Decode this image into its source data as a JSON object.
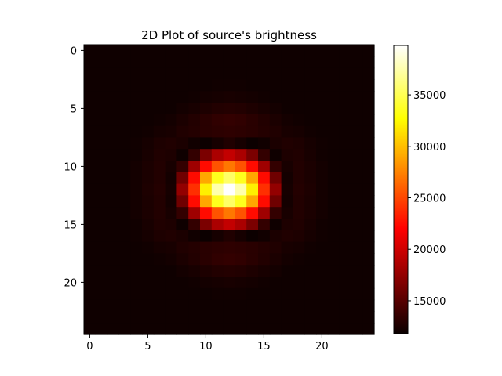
{
  "chart_data": {
    "type": "heatmap",
    "title": "2D Plot of source's brightness",
    "xlabel": "",
    "ylabel": "",
    "grid": false,
    "colormap": "hot",
    "rows": 25,
    "cols": 25,
    "x_ticks": [
      0,
      5,
      10,
      15,
      20
    ],
    "x_tick_labels": [
      "0",
      "5",
      "10",
      "15",
      "20"
    ],
    "y_ticks": [
      0,
      5,
      10,
      15,
      20
    ],
    "y_tick_labels": [
      "0",
      "5",
      "10",
      "15",
      "20"
    ],
    "colorbar": {
      "min": 11800,
      "max": 39800,
      "ticks": [
        15000,
        20000,
        25000,
        30000,
        35000
      ],
      "tick_labels": [
        "15000",
        "20000",
        "25000",
        "30000",
        "35000"
      ]
    },
    "values": [
      [
        12000,
        12000,
        12000,
        12000,
        12000,
        12000,
        12000,
        12000,
        12000,
        12000,
        12000,
        12000,
        12000,
        12000,
        12000,
        12000,
        12000,
        12000,
        12000,
        12000,
        12000,
        12000,
        12000,
        12000,
        12000
      ],
      [
        12000,
        12000,
        12000,
        12000,
        12000,
        12000,
        12000,
        12000,
        12000,
        12000,
        12000,
        12000,
        12000,
        12000,
        12000,
        12000,
        12000,
        12000,
        12000,
        12000,
        12000,
        12000,
        12000,
        12000,
        12000
      ],
      [
        12000,
        12000,
        12000,
        12000,
        12000,
        12000,
        12000,
        12000,
        12000,
        12000,
        12000,
        12000,
        12000,
        12000,
        12000,
        12000,
        12000,
        12000,
        12000,
        12000,
        12000,
        12000,
        12000,
        12000,
        12000
      ],
      [
        12000,
        12000,
        12000,
        12000,
        12000,
        12000,
        12000,
        12000,
        12000,
        12000,
        12000,
        12100,
        12100,
        12100,
        12000,
        12000,
        12000,
        12000,
        12000,
        12000,
        12000,
        12000,
        12000,
        12000,
        12000
      ],
      [
        12000,
        12000,
        12000,
        12000,
        12000,
        12000,
        12000,
        12000,
        12000,
        12100,
        12200,
        12300,
        12400,
        12300,
        12200,
        12100,
        12000,
        12000,
        12000,
        12000,
        12000,
        12000,
        12000,
        12000,
        12000
      ],
      [
        12000,
        12000,
        12000,
        12000,
        12000,
        12000,
        12000,
        12000,
        12200,
        12400,
        12600,
        12800,
        12900,
        12800,
        12600,
        12400,
        12200,
        12000,
        12000,
        12000,
        12000,
        12000,
        12000,
        12000,
        12000
      ],
      [
        12000,
        12000,
        12000,
        12000,
        12000,
        12000,
        12100,
        12200,
        12500,
        12800,
        13100,
        13400,
        13500,
        13400,
        13100,
        12800,
        12500,
        12200,
        12100,
        12000,
        12000,
        12000,
        12000,
        12000,
        12000
      ],
      [
        12000,
        12000,
        12000,
        12000,
        12000,
        12100,
        12300,
        12400,
        12700,
        12900,
        13100,
        13200,
        13300,
        13200,
        13100,
        12900,
        12700,
        12400,
        12300,
        12100,
        12000,
        12000,
        12000,
        12000,
        12000
      ],
      [
        12000,
        12000,
        12000,
        12000,
        12100,
        12300,
        12600,
        12700,
        12500,
        12100,
        11900,
        12300,
        12700,
        12300,
        11900,
        12100,
        12500,
        12700,
        12600,
        12300,
        12100,
        12000,
        12000,
        12000,
        12000
      ],
      [
        12000,
        12000,
        12000,
        12000,
        12100,
        12400,
        12700,
        12600,
        12000,
        13500,
        16500,
        18500,
        19500,
        18500,
        16500,
        13500,
        12000,
        12600,
        12700,
        12400,
        12100,
        12000,
        12000,
        12000,
        12000
      ],
      [
        12000,
        12000,
        12000,
        12000,
        12200,
        12500,
        12800,
        12400,
        13500,
        18000,
        22500,
        25500,
        27000,
        25500,
        22500,
        18000,
        13500,
        12400,
        12800,
        12500,
        12200,
        12000,
        12000,
        12000,
        12000
      ],
      [
        12000,
        12000,
        12000,
        12000,
        12200,
        12500,
        12800,
        12200,
        16000,
        22500,
        29000,
        33500,
        35500,
        33500,
        29000,
        22500,
        16000,
        12200,
        12800,
        12500,
        12200,
        12000,
        12000,
        12000,
        12000
      ],
      [
        12000,
        12000,
        12000,
        12000,
        12200,
        12600,
        12900,
        12300,
        17500,
        24000,
        32000,
        37500,
        39800,
        37500,
        32000,
        24000,
        17500,
        12300,
        12900,
        12600,
        12200,
        12000,
        12000,
        12000,
        12000
      ],
      [
        12000,
        12000,
        12000,
        12000,
        12200,
        12500,
        12800,
        12200,
        16000,
        22500,
        29000,
        33500,
        35500,
        33500,
        29000,
        22500,
        16000,
        12200,
        12800,
        12500,
        12200,
        12000,
        12000,
        12000,
        12000
      ],
      [
        12000,
        12000,
        12000,
        12000,
        12200,
        12500,
        12800,
        12400,
        13500,
        18000,
        22500,
        25500,
        27000,
        25500,
        22500,
        18000,
        13500,
        12400,
        12800,
        12500,
        12200,
        12000,
        12000,
        12000,
        12000
      ],
      [
        12000,
        12000,
        12000,
        12000,
        12100,
        12400,
        12700,
        12600,
        12000,
        13500,
        16500,
        18500,
        19500,
        18500,
        16500,
        13500,
        12000,
        12600,
        12700,
        12400,
        12100,
        12000,
        12000,
        12000,
        12000
      ],
      [
        12000,
        12000,
        12000,
        12000,
        12100,
        12300,
        12600,
        12700,
        12500,
        12100,
        11900,
        12300,
        12700,
        12300,
        11900,
        12100,
        12500,
        12700,
        12600,
        12300,
        12100,
        12000,
        12000,
        12000,
        12000
      ],
      [
        12000,
        12000,
        12000,
        12000,
        12000,
        12100,
        12300,
        12400,
        12700,
        12900,
        13100,
        13200,
        13300,
        13200,
        13100,
        12900,
        12700,
        12400,
        12300,
        12100,
        12000,
        12000,
        12000,
        12000,
        12000
      ],
      [
        12000,
        12000,
        12000,
        12000,
        12000,
        12000,
        12100,
        12200,
        12500,
        12800,
        13100,
        13400,
        13500,
        13400,
        13100,
        12800,
        12500,
        12200,
        12100,
        12000,
        12000,
        12000,
        12000,
        12000,
        12000
      ],
      [
        12000,
        12000,
        12000,
        12000,
        12000,
        12000,
        12000,
        12000,
        12200,
        12400,
        12600,
        12800,
        12900,
        12800,
        12600,
        12400,
        12200,
        12000,
        12000,
        12000,
        12000,
        12000,
        12000,
        12000,
        12000
      ],
      [
        12000,
        12000,
        12000,
        12000,
        12000,
        12000,
        12000,
        12000,
        12000,
        12100,
        12200,
        12300,
        12400,
        12300,
        12200,
        12100,
        12000,
        12000,
        12000,
        12000,
        12000,
        12000,
        12000,
        12000,
        12000
      ],
      [
        12000,
        12000,
        12000,
        12000,
        12000,
        12000,
        12000,
        12000,
        12000,
        12000,
        12000,
        12100,
        12100,
        12100,
        12000,
        12000,
        12000,
        12000,
        12000,
        12000,
        12000,
        12000,
        12000,
        12000,
        12000
      ],
      [
        12000,
        12000,
        12000,
        12000,
        12000,
        12000,
        12000,
        12000,
        12000,
        12000,
        12000,
        12000,
        12000,
        12000,
        12000,
        12000,
        12000,
        12000,
        12000,
        12000,
        12000,
        12000,
        12000,
        12000,
        12000
      ],
      [
        12000,
        12000,
        12000,
        12000,
        12000,
        12000,
        12000,
        12000,
        12000,
        12000,
        12000,
        12000,
        12000,
        12000,
        12000,
        12000,
        12000,
        12000,
        12000,
        12000,
        12000,
        12000,
        12000,
        12000,
        12000
      ],
      [
        12000,
        12000,
        12000,
        12000,
        12000,
        12000,
        12000,
        12000,
        12000,
        12000,
        12000,
        12000,
        12000,
        12000,
        12000,
        12000,
        12000,
        12000,
        12000,
        12000,
        12000,
        12000,
        12000,
        12000,
        12000
      ]
    ]
  }
}
